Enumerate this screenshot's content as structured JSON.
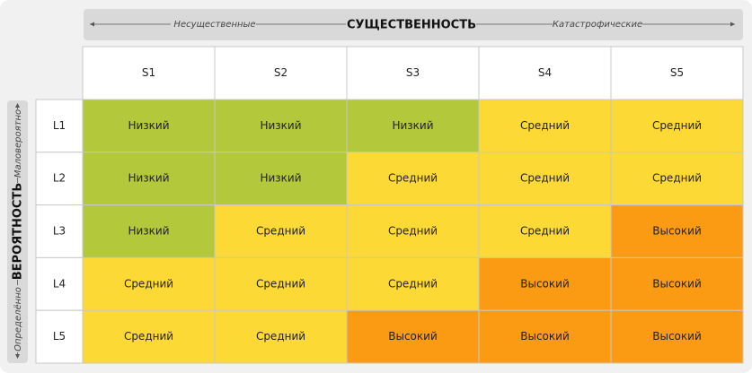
{
  "header": {
    "axis_title": "СУЩЕСТВЕННОСТЬ",
    "left_label": "Несущественные",
    "right_label": "Катастрофические"
  },
  "side": {
    "axis_title": "ВЕРОЯТНОСТЬ",
    "bottom_label": "Определённо",
    "top_label": "Маловероятно"
  },
  "table": {
    "columns": [
      "S1",
      "S2",
      "S3",
      "S4",
      "S5"
    ],
    "rows": [
      {
        "label": "L1",
        "cells": [
          {
            "text": "Низкий",
            "color": "#b3c83a"
          },
          {
            "text": "Низкий",
            "color": "#b3c83a"
          },
          {
            "text": "Низкий",
            "color": "#b3c83a"
          },
          {
            "text": "Средний",
            "color": "#fdd935"
          },
          {
            "text": "Средний",
            "color": "#fdd935"
          }
        ]
      },
      {
        "label": "L2",
        "cells": [
          {
            "text": "Низкий",
            "color": "#b3c83a"
          },
          {
            "text": "Низкий",
            "color": "#b3c83a"
          },
          {
            "text": "Средний",
            "color": "#fdd935"
          },
          {
            "text": "Средний",
            "color": "#fdd935"
          },
          {
            "text": "Средний",
            "color": "#fdd935"
          }
        ]
      },
      {
        "label": "L3",
        "cells": [
          {
            "text": "Низкий",
            "color": "#b3c83a"
          },
          {
            "text": "Средний",
            "color": "#fdd935"
          },
          {
            "text": "Средний",
            "color": "#fdd935"
          },
          {
            "text": "Средний",
            "color": "#fdd935"
          },
          {
            "text": "Высокий",
            "color": "#fb9b14"
          }
        ]
      },
      {
        "label": "L4",
        "cells": [
          {
            "text": "Средний",
            "color": "#fdd935"
          },
          {
            "text": "Средний",
            "color": "#fdd935"
          },
          {
            "text": "Средний",
            "color": "#fdd935"
          },
          {
            "text": "Высокий",
            "color": "#fb9b14"
          },
          {
            "text": "Высокий",
            "color": "#fb9b14"
          }
        ]
      },
      {
        "label": "L5",
        "cells": [
          {
            "text": "Средний",
            "color": "#fdd935"
          },
          {
            "text": "Средний",
            "color": "#fdd935"
          },
          {
            "text": "Высокий",
            "color": "#fb9b14"
          },
          {
            "text": "Высокий",
            "color": "#fb9b14"
          },
          {
            "text": "Высокий",
            "color": "#fb9b14"
          }
        ]
      }
    ]
  }
}
